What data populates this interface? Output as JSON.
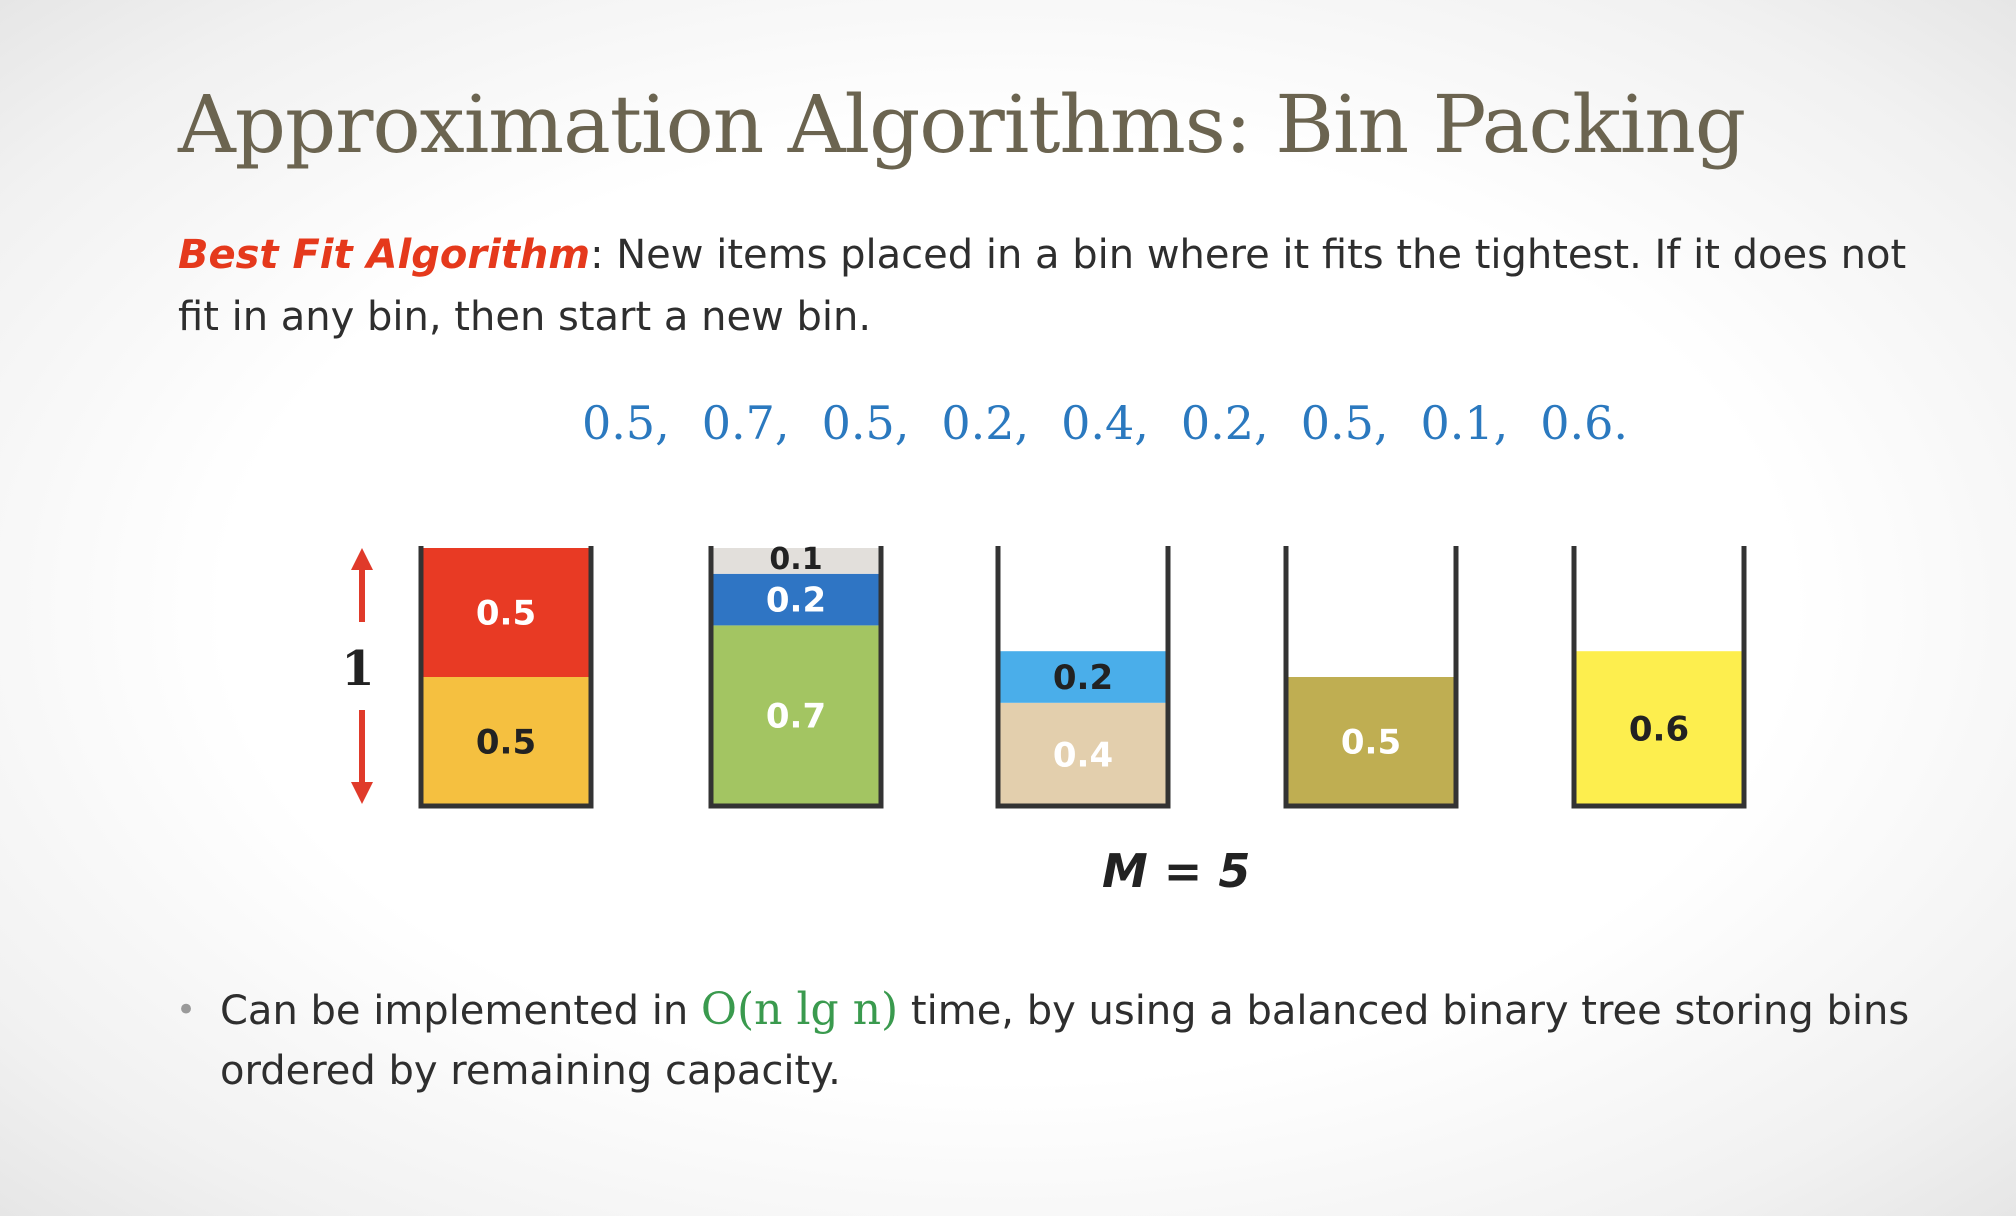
{
  "slide": {
    "title": "Approximation Algorithms: Bin Packing",
    "definition": {
      "term": "Best Fit Algorithm",
      "text": ": New items placed in a bin where it fits the tightest. If it does not fit in any bin, then start a new bin."
    },
    "sequence": [
      "0.5,",
      "0.7,",
      "0.5,",
      "0.2,",
      "0.4,",
      "0.2,",
      "0.5,",
      "0.1,",
      "0.6."
    ],
    "capacity_label": "1",
    "bins": [
      {
        "items": [
          {
            "value": 0.5,
            "label": "0.5",
            "color": "#f5c040",
            "text_color": "#222222"
          },
          {
            "value": 0.5,
            "label": "0.5",
            "color": "#e83a24",
            "text_color": "#ffffff"
          }
        ]
      },
      {
        "items": [
          {
            "value": 0.7,
            "label": "0.7",
            "color": "#a3c562",
            "text_color": "#ffffff"
          },
          {
            "value": 0.2,
            "label": "0.2",
            "color": "#2f75c4",
            "text_color": "#ffffff"
          },
          {
            "value": 0.1,
            "label": "0.1",
            "color": "#e2dfdb",
            "text_color": "#222222"
          }
        ]
      },
      {
        "items": [
          {
            "value": 0.4,
            "label": "0.4",
            "color": "#e3cfad",
            "text_color": "#ffffff"
          },
          {
            "value": 0.2,
            "label": "0.2",
            "color": "#4aaeea",
            "text_color": "#222222"
          }
        ]
      },
      {
        "items": [
          {
            "value": 0.5,
            "label": "0.5",
            "color": "#bfae52",
            "text_color": "#ffffff"
          }
        ]
      },
      {
        "items": [
          {
            "value": 0.6,
            "label": "0.6",
            "color": "#fdee4e",
            "text_color": "#222222"
          }
        ]
      }
    ],
    "m_label": "M = 5",
    "bullet": {
      "prefix": "Can be implemented in ",
      "complexity": "O(n lg n)",
      "suffix": " time, by using a balanced binary tree storing bins ordered by remaining capacity."
    },
    "colors": {
      "arrow": "#e03a2a",
      "bin_wall": "#333333"
    }
  }
}
